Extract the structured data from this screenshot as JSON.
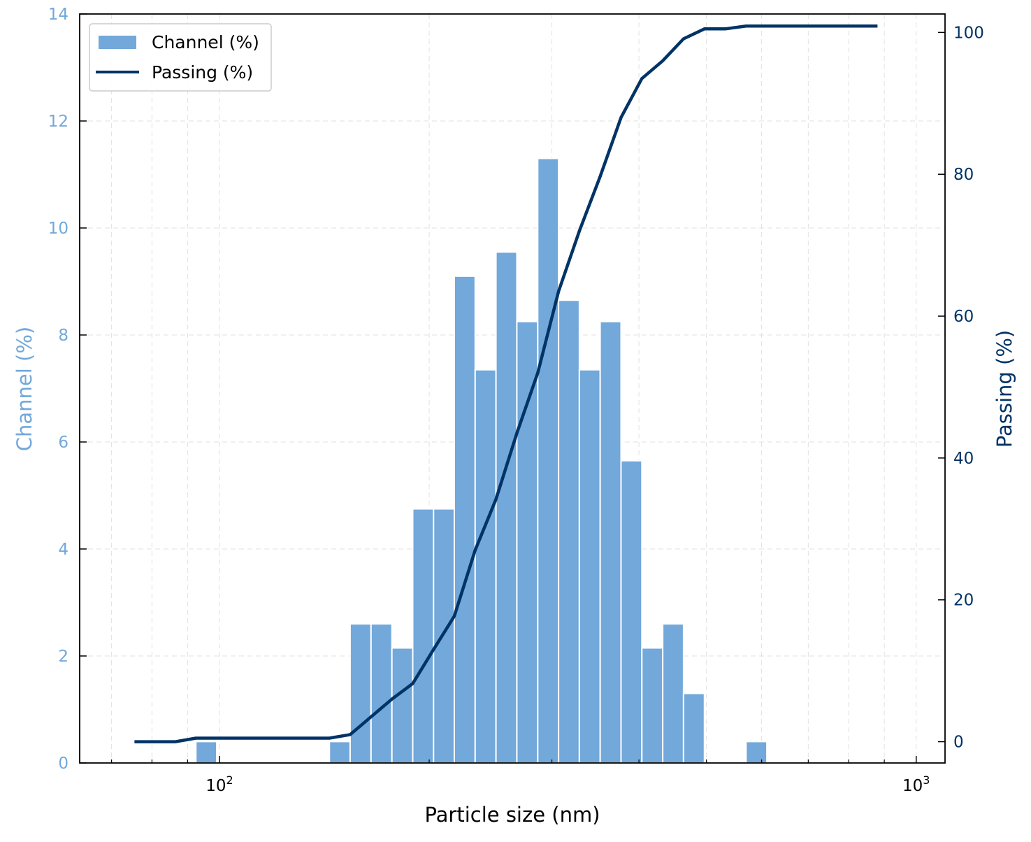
{
  "chart_data": {
    "type": "bar+line",
    "x_scale": "log",
    "xlabel": "Particle size (nm)",
    "xlim": [
      63,
      1100
    ],
    "x_ticks": [
      {
        "value": 100,
        "base": "10",
        "exp": "2"
      },
      {
        "value": 1000,
        "base": "10",
        "exp": "3"
      }
    ],
    "ylabel_left": "Channel (%)",
    "ylim_left": [
      0,
      14
    ],
    "yticks_left": [
      0,
      2,
      4,
      6,
      8,
      10,
      12,
      14
    ],
    "ylabel_right": "Passing (%)",
    "ylim_right": [
      -3,
      102.6
    ],
    "yticks_right": [
      0,
      20,
      40,
      60,
      80,
      100
    ],
    "grid": true,
    "legend_position": "top-left",
    "series": [
      {
        "name": "Channel (%)",
        "kind": "bar",
        "axis": "left",
        "color": "#72a8da",
        "bin_edges": [
          92.5,
          99.1,
          143.8,
          154.0,
          165.0,
          176.8,
          189.4,
          202.9,
          217.3,
          232.8,
          249.4,
          267.2,
          286.3,
          306.7,
          328.5,
          351.9,
          377.0,
          403.9,
          432.7,
          463.5,
          496.6,
          532.0,
          569.9,
          610.5
        ],
        "values": [
          0.4,
          0,
          0.4,
          2.6,
          2.6,
          2.15,
          4.75,
          4.75,
          9.1,
          7.35,
          9.55,
          8.25,
          11.3,
          8.65,
          7.35,
          8.25,
          5.65,
          2.15,
          2.6,
          1.3,
          0,
          0,
          0.4
        ]
      },
      {
        "name": "Passing (%)",
        "kind": "line",
        "axis": "right",
        "color": "#003366",
        "x": [
          75.5,
          86.5,
          92.5,
          143.8,
          154.0,
          165.0,
          176.8,
          189.4,
          202.9,
          217.3,
          232.8,
          249.4,
          267.2,
          286.3,
          306.7,
          328.5,
          351.9,
          377.0,
          403.9,
          432.7,
          463.5,
          496.6,
          532.0,
          569.9,
          610.5,
          880.0
        ],
        "y": [
          0,
          0,
          0.5,
          0.5,
          1,
          3.5,
          6,
          8.2,
          13,
          17.7,
          27,
          34.2,
          43.5,
          52,
          63.5,
          72,
          79.7,
          88,
          93.5,
          96,
          99.1,
          100.5,
          100.5,
          100.9,
          100.9,
          100.9
        ]
      }
    ]
  }
}
